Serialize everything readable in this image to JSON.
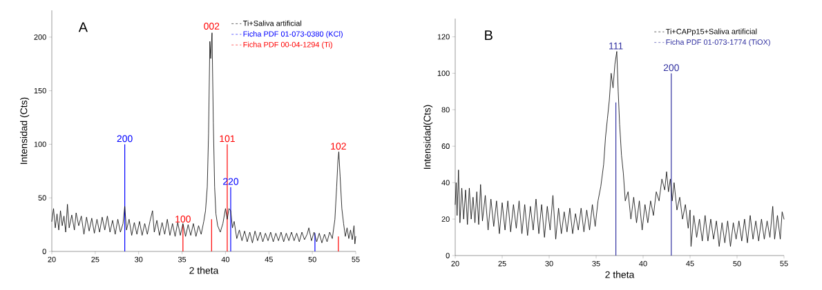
{
  "chart_data": [
    {
      "type": "line",
      "xlabel": "2 theta",
      "ylabel": "Intensidad (Cts)",
      "xlim": [
        20,
        55
      ],
      "ylim": [
        0,
        225
      ],
      "xticks": [
        20,
        25,
        30,
        35,
        40,
        45,
        50,
        55
      ],
      "yticks": [
        0,
        50,
        100,
        150,
        200
      ],
      "legend": "top right",
      "line_style": "solid",
      "annotations": [
        "A",
        {
          "text": "200",
          "x": 28.4,
          "y": 100
        },
        {
          "text": "100",
          "x": 35.1,
          "y": 25
        },
        {
          "text": "002",
          "x": 38.4,
          "y": 205
        },
        {
          "text": "101",
          "x": 40.2,
          "y": 100
        },
        {
          "text": "220",
          "x": 40.6,
          "y": 60
        },
        {
          "text": "102",
          "x": 53.0,
          "y": 93
        }
      ],
      "series": [
        {
          "name": "Ti+Saliva artificial",
          "color": "#000000",
          "x": [
            20,
            20.2,
            20.4,
            20.6,
            20.8,
            21,
            21.2,
            21.4,
            21.6,
            21.8,
            22,
            22.3,
            22.6,
            22.8,
            23.1,
            23.4,
            23.7,
            24,
            24.3,
            24.6,
            24.9,
            25.2,
            25.5,
            25.8,
            26.1,
            26.4,
            26.7,
            27,
            27.3,
            27.6,
            27.9,
            28.2,
            28.4,
            28.6,
            28.9,
            29.2,
            29.5,
            29.8,
            30.1,
            30.4,
            30.7,
            31,
            31.3,
            31.6,
            31.8,
            32.1,
            32.4,
            32.7,
            33,
            33.3,
            33.6,
            33.9,
            34.2,
            34.5,
            34.8,
            35.1,
            35.4,
            35.7,
            36,
            36.3,
            36.6,
            36.9,
            37.2,
            37.5,
            37.7,
            37.9,
            38.05,
            38.2,
            38.3,
            38.45,
            38.6,
            38.75,
            38.9,
            39.1,
            39.4,
            39.7,
            40,
            40.2,
            40.4,
            40.6,
            40.8,
            41,
            41.3,
            41.6,
            41.9,
            42.2,
            42.5,
            42.8,
            43.1,
            43.4,
            43.7,
            44,
            44.3,
            44.6,
            44.9,
            45.2,
            45.5,
            45.8,
            46.1,
            46.4,
            46.7,
            47,
            47.3,
            47.6,
            47.9,
            48.2,
            48.5,
            48.8,
            49.1,
            49.4,
            49.6,
            49.9,
            50.2,
            50.5,
            50.8,
            51.1,
            51.4,
            51.7,
            52,
            52.3,
            52.6,
            52.8,
            52.95,
            53.05,
            53.2,
            53.4,
            53.6,
            53.8,
            54,
            54.2,
            54.4,
            54.6,
            54.8,
            54.9,
            55
          ],
          "values": [
            28,
            40,
            22,
            35,
            20,
            38,
            24,
            33,
            18,
            44,
            22,
            34,
            20,
            36,
            24,
            33,
            16,
            32,
            19,
            31,
            17,
            30,
            18,
            32,
            20,
            33,
            18,
            29,
            16,
            30,
            18,
            26,
            42,
            20,
            30,
            15,
            27,
            16,
            28,
            15,
            26,
            16,
            28,
            38,
            18,
            29,
            15,
            27,
            16,
            30,
            15,
            26,
            14,
            27,
            15,
            26,
            14,
            25,
            15,
            26,
            14,
            24,
            16,
            28,
            38,
            60,
            110,
            196,
            180,
            204,
            120,
            60,
            35,
            24,
            18,
            26,
            40,
            30,
            40,
            38,
            22,
            28,
            12,
            20,
            10,
            19,
            9,
            18,
            8,
            19,
            10,
            18,
            9,
            17,
            10,
            18,
            9,
            17,
            10,
            18,
            9,
            17,
            10,
            18,
            10,
            17,
            9,
            18,
            11,
            16,
            22,
            10,
            18,
            9,
            17,
            8,
            16,
            9,
            18,
            12,
            30,
            60,
            85,
            93,
            70,
            40,
            26,
            14,
            22,
            12,
            20,
            11,
            24,
            7,
            14
          ]
        },
        {
          "name": "Ficha PDF 01-073-0380 (KCl)",
          "type": "bar",
          "color": "#0000ff",
          "x": [
            28.4,
            40.6,
            50.3
          ],
          "values": [
            100,
            60,
            17
          ]
        },
        {
          "name": "Ficha PDF 00-04-1294 (Ti)",
          "type": "bar",
          "color": "#ff0000",
          "x": [
            35.1,
            38.4,
            40.2,
            53.0
          ],
          "values": [
            25,
            30,
            100,
            14
          ]
        }
      ]
    },
    {
      "type": "line",
      "xlabel": "2 theta",
      "ylabel": "Intensidad(Cts)",
      "xlim": [
        20,
        55
      ],
      "ylim": [
        0,
        130
      ],
      "xticks": [
        20,
        25,
        30,
        35,
        40,
        45,
        50,
        55
      ],
      "yticks": [
        0,
        20,
        40,
        60,
        80,
        100,
        120
      ],
      "legend": "top right",
      "line_style": "solid",
      "annotations": [
        "B",
        {
          "text": "111",
          "x": 37.1,
          "y": 112
        },
        {
          "text": "200",
          "x": 43.0,
          "y": 100
        }
      ],
      "series": [
        {
          "name": "Ti+CAPp15+Saliva artificial",
          "color": "#000000",
          "x": [
            20,
            20.1,
            20.2,
            20.35,
            20.5,
            20.7,
            20.9,
            21.1,
            21.3,
            21.5,
            21.7,
            21.9,
            22.1,
            22.3,
            22.5,
            22.7,
            22.9,
            23.2,
            23.5,
            23.8,
            24.1,
            24.4,
            24.7,
            25,
            25.3,
            25.6,
            25.9,
            26.2,
            26.5,
            26.8,
            27.1,
            27.4,
            27.7,
            28,
            28.3,
            28.6,
            28.9,
            29.2,
            29.5,
            29.8,
            30.1,
            30.4,
            30.7,
            31,
            31.3,
            31.6,
            31.9,
            32.2,
            32.5,
            32.8,
            33.1,
            33.4,
            33.7,
            34,
            34.3,
            34.6,
            34.9,
            35.2,
            35.5,
            35.8,
            36,
            36.2,
            36.4,
            36.6,
            36.8,
            37,
            37.2,
            37.35,
            37.5,
            37.7,
            37.9,
            38.1,
            38.4,
            38.7,
            39,
            39.3,
            39.6,
            39.9,
            40.2,
            40.5,
            40.8,
            41.1,
            41.4,
            41.7,
            42,
            42.3,
            42.5,
            42.7,
            42.9,
            43.1,
            43.3,
            43.6,
            43.9,
            44.2,
            44.5,
            44.8,
            45,
            45.1,
            45.4,
            45.7,
            46,
            46.3,
            46.6,
            46.9,
            47.2,
            47.5,
            47.8,
            48.1,
            48.4,
            48.7,
            49,
            49.3,
            49.6,
            49.9,
            50.2,
            50.5,
            50.8,
            51.1,
            51.4,
            51.7,
            52,
            52.3,
            52.6,
            52.9,
            53.2,
            53.5,
            53.8,
            54,
            54.3,
            54.6,
            54.8,
            55
          ],
          "values": [
            28,
            40,
            22,
            47,
            18,
            37,
            20,
            36,
            17,
            37,
            20,
            32,
            18,
            35,
            17,
            39,
            19,
            33,
            14,
            31,
            16,
            30,
            12,
            29,
            14,
            30,
            13,
            28,
            15,
            30,
            12,
            28,
            11,
            27,
            14,
            31,
            12,
            28,
            10,
            27,
            14,
            33,
            9,
            26,
            12,
            24,
            13,
            26,
            12,
            23,
            14,
            26,
            13,
            25,
            14,
            28,
            16,
            30,
            38,
            50,
            65,
            75,
            85,
            100,
            92,
            105,
            112,
            90,
            72,
            55,
            45,
            30,
            35,
            20,
            32,
            18,
            30,
            14,
            28,
            18,
            30,
            22,
            35,
            30,
            42,
            36,
            46,
            35,
            42,
            30,
            40,
            25,
            32,
            20,
            28,
            15,
            25,
            5,
            22,
            10,
            20,
            8,
            22,
            8,
            20,
            9,
            19,
            5,
            18,
            7,
            19,
            5,
            18,
            9,
            19,
            8,
            20,
            7,
            22,
            9,
            19,
            8,
            20,
            9,
            19,
            10,
            27,
            9,
            22,
            9,
            24,
            20
          ]
        },
        {
          "name": "Ficha PDF 01-073-1774 (TiOX)",
          "type": "bar",
          "color": "#3030a0",
          "x": [
            37.1,
            43.0
          ],
          "values": [
            84,
            100
          ]
        }
      ]
    }
  ]
}
